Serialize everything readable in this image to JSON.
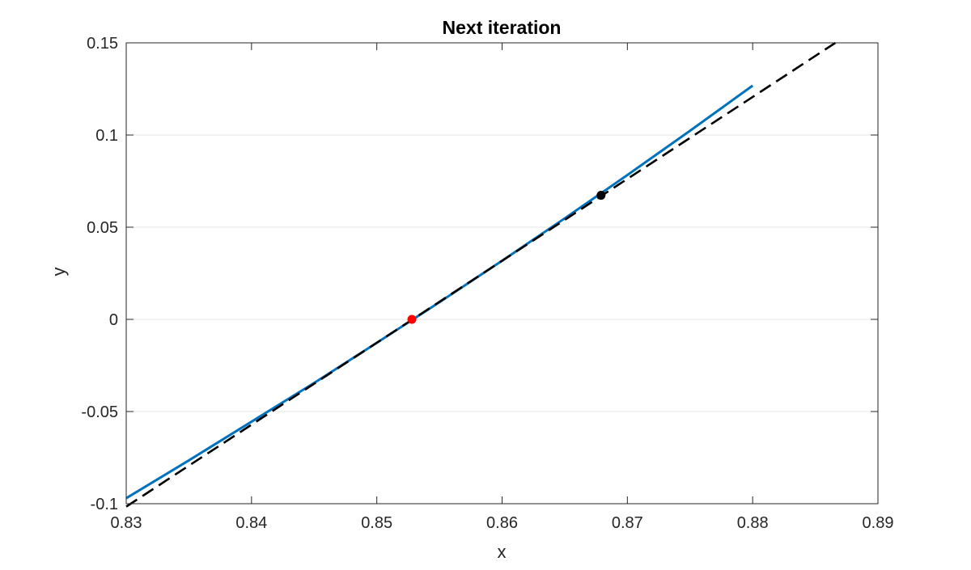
{
  "chart_data": {
    "type": "line",
    "title": "Next iteration",
    "xlabel": "x",
    "ylabel": "y",
    "xlim": [
      0.83,
      0.89
    ],
    "ylim": [
      -0.1,
      0.15
    ],
    "xticks": [
      0.83,
      0.84,
      0.85,
      0.86,
      0.87,
      0.88,
      0.89
    ],
    "xtick_labels": [
      "0.83",
      "0.84",
      "0.85",
      "0.86",
      "0.87",
      "0.88",
      "0.89"
    ],
    "yticks": [
      -0.1,
      -0.05,
      0,
      0.05,
      0.1,
      0.15
    ],
    "ytick_labels": [
      "-0.1",
      "-0.05",
      "0",
      "0.05",
      "0.1",
      "0.15"
    ],
    "grid": "y",
    "series": [
      {
        "style": "solid",
        "color": "#0072BD",
        "x": [
          0.83,
          0.835,
          0.84,
          0.845,
          0.85,
          0.855,
          0.86,
          0.865,
          0.87,
          0.875,
          0.88
        ],
        "y": [
          -0.097,
          -0.0765,
          -0.0555,
          -0.0345,
          -0.0127,
          0.0093,
          0.0318,
          0.0548,
          0.0783,
          0.1023,
          0.1268
        ]
      },
      {
        "style": "dashed",
        "color": "#000000",
        "x": [
          0.83,
          0.8866
        ],
        "y": [
          -0.1016,
          0.15
        ]
      }
    ],
    "points": [
      {
        "x": 0.8528,
        "y": 0.0,
        "color": "#FF0000"
      },
      {
        "x": 0.8679,
        "y": 0.0673,
        "color": "#000000"
      }
    ]
  }
}
